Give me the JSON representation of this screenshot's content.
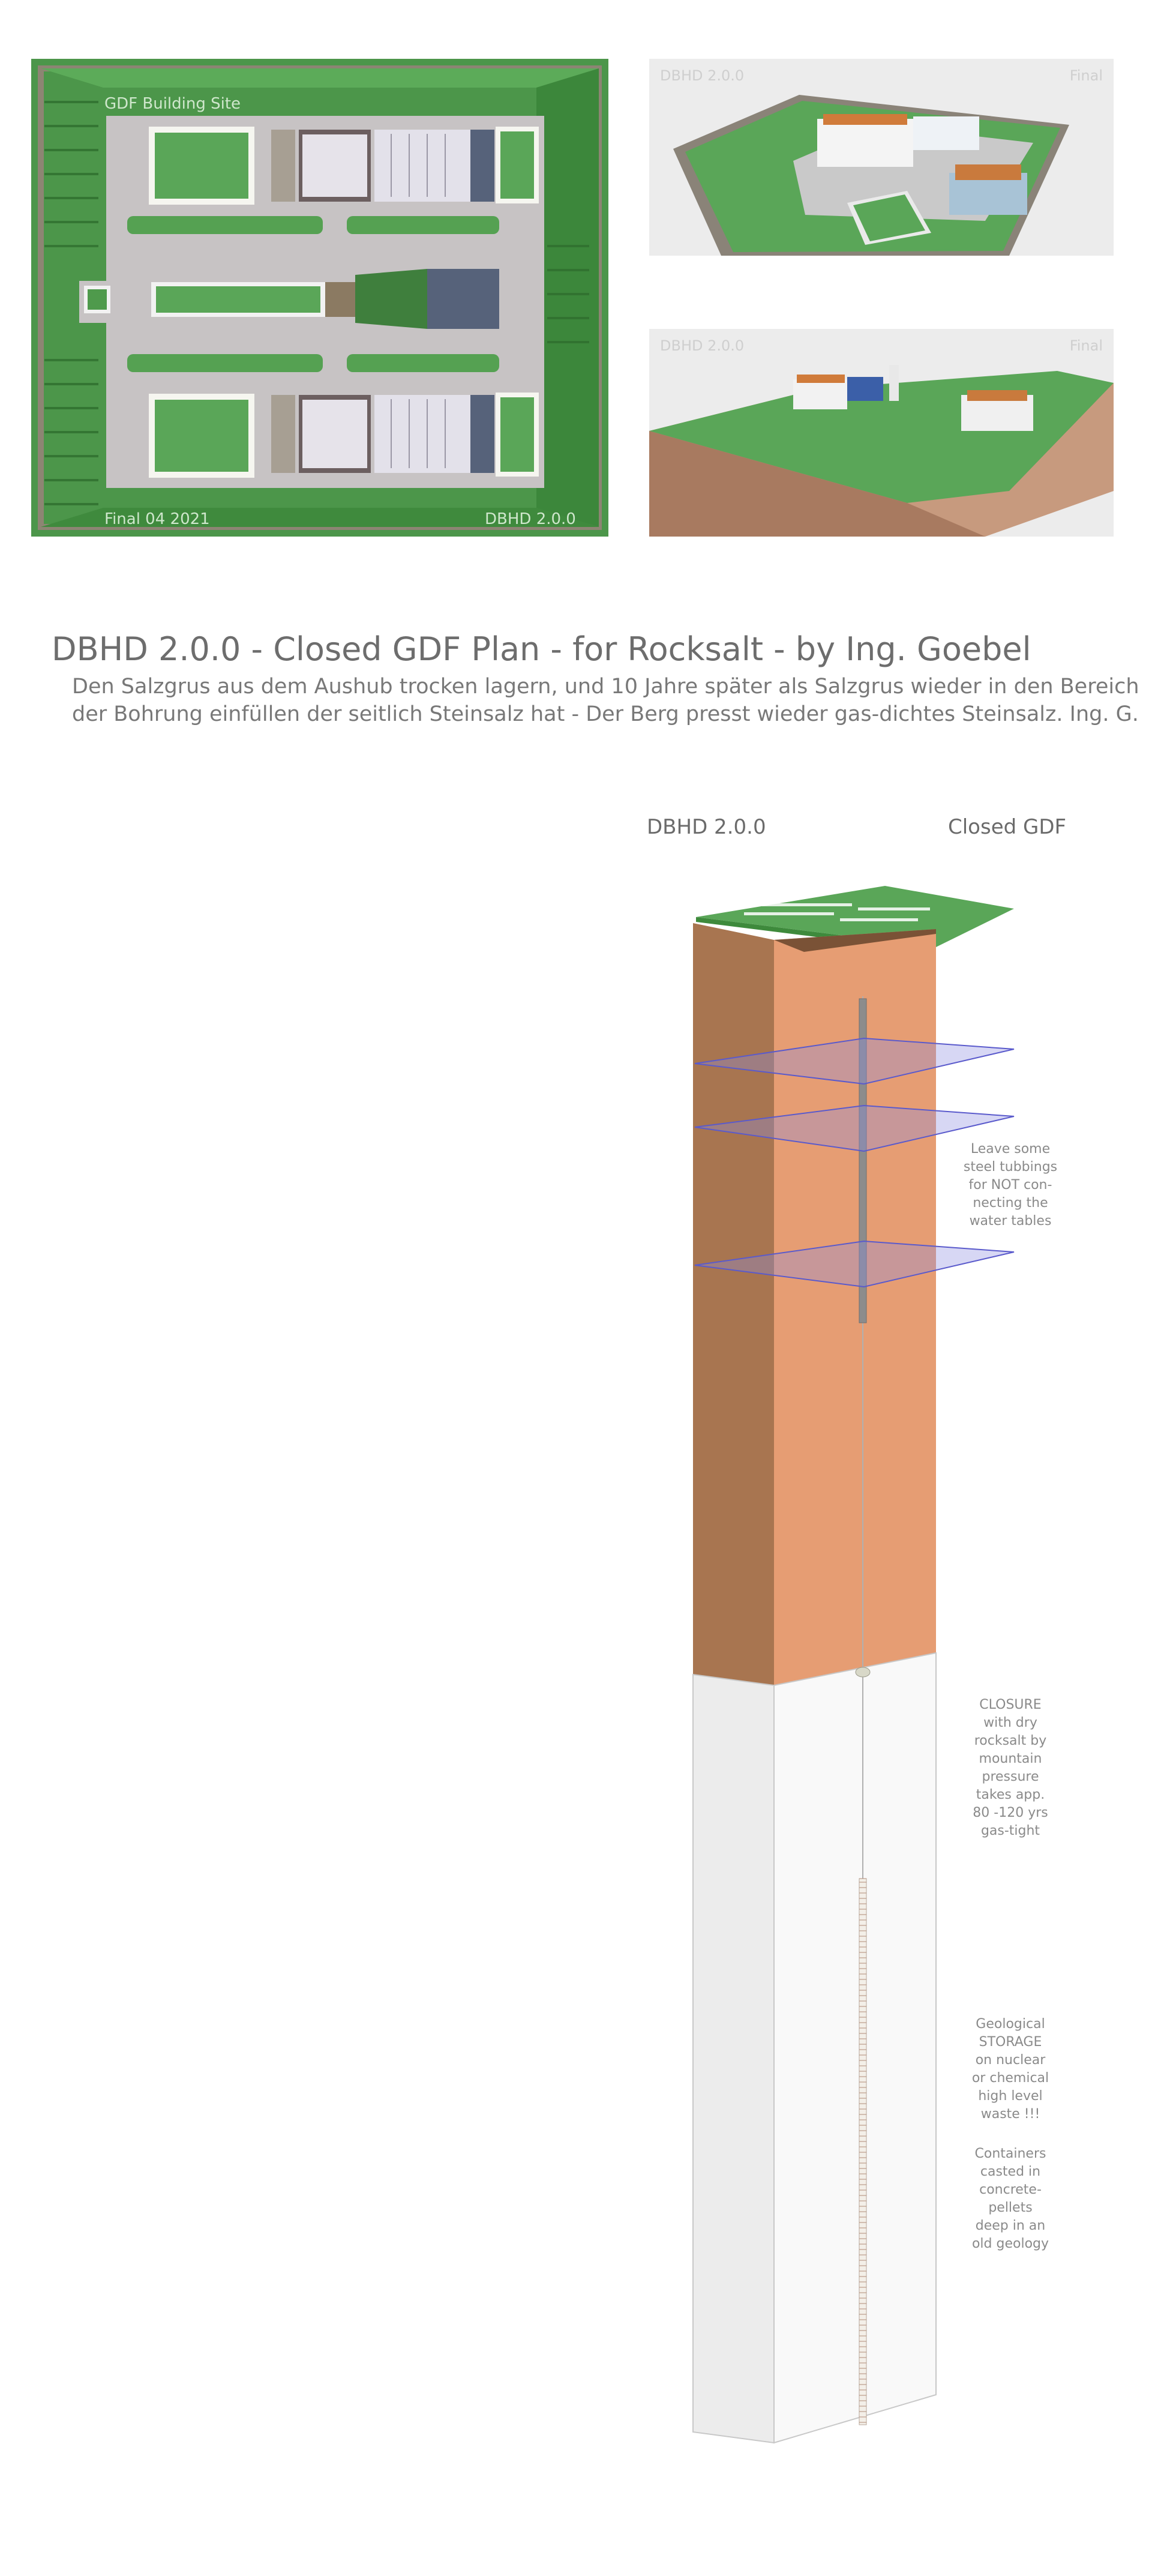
{
  "site_plan": {
    "site_label": "GDF Building Site",
    "final_label": "Final 04 2021",
    "version_label": "DBHD 2.0.0"
  },
  "render_top": {
    "version_label": "DBHD 2.0.0",
    "status_label": "Final"
  },
  "render_bottom": {
    "version_label": "DBHD 2.0.0",
    "status_label": "Final"
  },
  "title": "DBHD 2.0.0 - Closed GDF Plan - for Rocksalt - by Ing. Goebel",
  "description": [
    "Den Salzgrus aus dem Aushub trocken lagern, und 10 Jahre später als Salzgrus wieder in den Bereich",
    "der Bohrung einfüllen der seitlich Steinsalz hat - Der Berg presst wieder gas-dichtes Steinsalz. Ing. G."
  ],
  "diagram": {
    "header_left": "DBHD 2.0.0",
    "header_right": "Closed GDF",
    "notes": {
      "water_tables": "Leave some\nsteel tubbings\nfor NOT con-\nnecting the\nwater tables",
      "closure": "CLOSURE\nwith dry\nrocksalt by\nmountain\npressure\ntakes app.\n80 -120 yrs\ngas-tight",
      "storage": "Geological\nSTORAGE\non nuclear\nor chemical\nhigh level\nwaste !!!",
      "containers": "Containers\ncasted in\nconcrete-\npellets\ndeep in an\nold geology"
    }
  },
  "colors": {
    "grass": "#5da75a",
    "road": "#b9b9b9",
    "salt_front": "#e59d72",
    "salt_side": "#a87550",
    "water_plane": "#8d8de0"
  }
}
